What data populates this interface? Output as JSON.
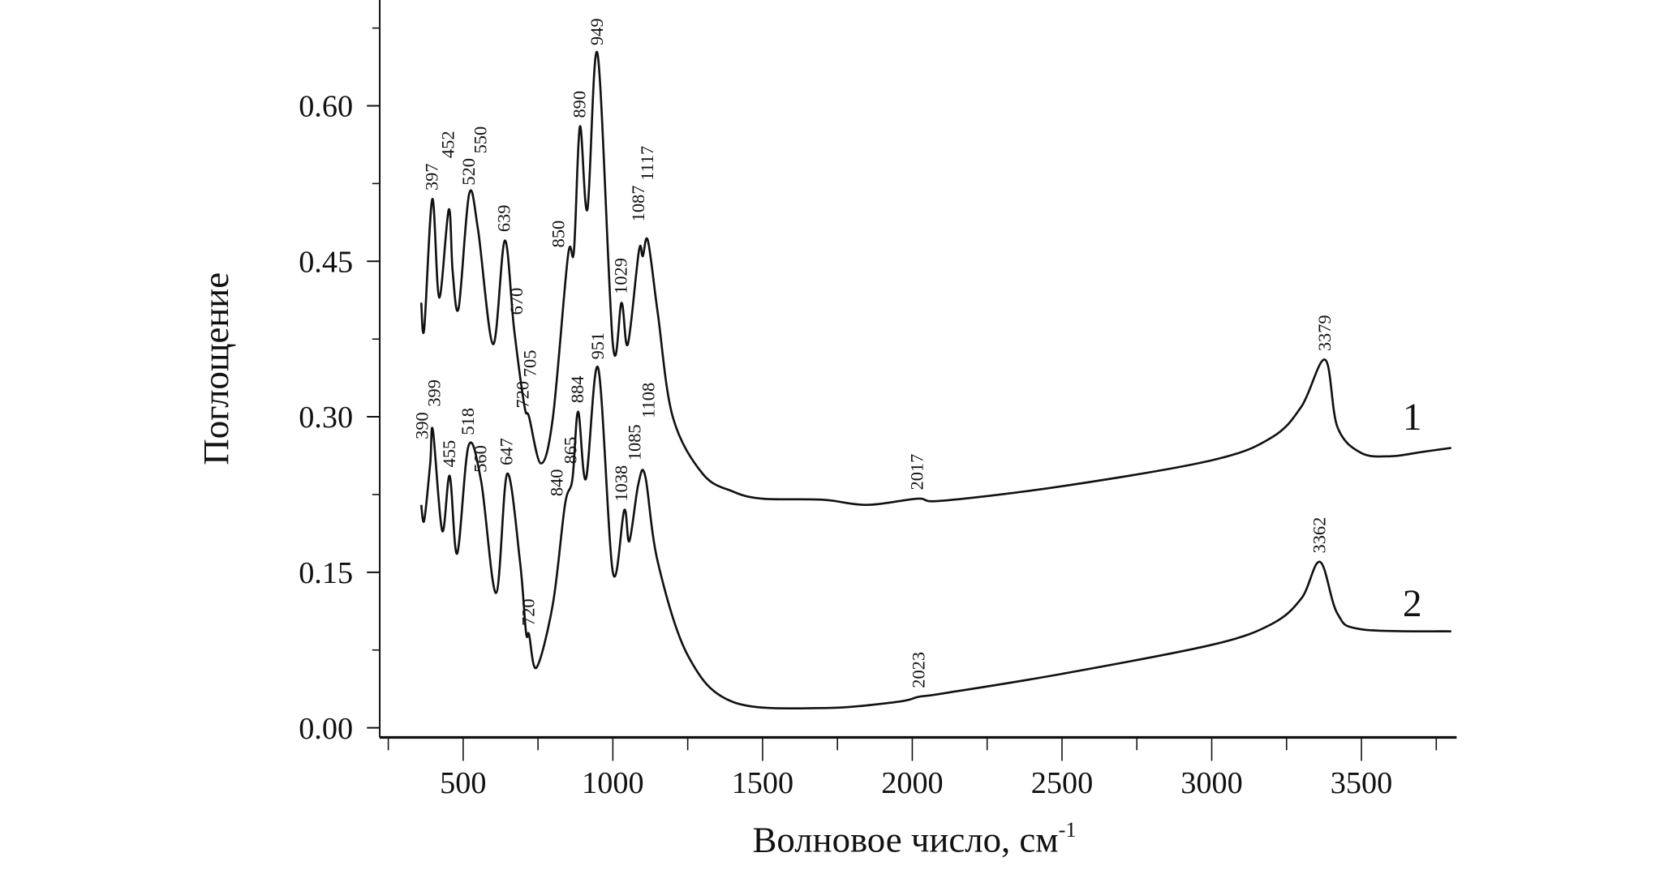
{
  "chart_data": {
    "type": "line",
    "title": "",
    "xlabel": "Волновое число, см",
    "xlabel_sup": "-1",
    "ylabel": "Поглощение",
    "xlim": [
      221,
      3811
    ],
    "ylim": [
      0,
      0.68
    ],
    "grid": false,
    "x_ticks": [
      500,
      1000,
      1500,
      2000,
      2500,
      3000,
      3500
    ],
    "x_tick_labels": [
      "500",
      "1000",
      "1500",
      "2000",
      "2500",
      "3000",
      "3500"
    ],
    "x_minor_ticks": [
      250,
      750,
      1250,
      1750,
      2250,
      2750,
      3250,
      3750
    ],
    "y_ticks": [
      0,
      0.15,
      0.3,
      0.45,
      0.6
    ],
    "y_tick_labels": [
      "0.00",
      "0.15",
      "0.30",
      "0.45",
      "0.60"
    ],
    "y_minor_ticks": [
      0.075,
      0.225,
      0.375,
      0.525,
      0.675
    ],
    "series": [
      {
        "name": "1",
        "label_pos": [
          3670,
          0.3
        ],
        "x": [
          360,
          370,
          397,
          420,
          452,
          465,
          485,
          520,
          550,
          600,
          639,
          670,
          705,
          720,
          760,
          800,
          850,
          870,
          890,
          915,
          949,
          1000,
          1029,
          1050,
          1087,
          1100,
          1117,
          1150,
          1200,
          1300,
          1400,
          1500,
          1700,
          1850,
          2017,
          2100,
          2500,
          3000,
          3200,
          3300,
          3379,
          3420,
          3500,
          3600,
          3700,
          3800
        ],
        "y": [
          0.41,
          0.385,
          0.51,
          0.415,
          0.5,
          0.44,
          0.405,
          0.515,
          0.48,
          0.37,
          0.47,
          0.385,
          0.31,
          0.3,
          0.255,
          0.3,
          0.455,
          0.46,
          0.58,
          0.5,
          0.65,
          0.37,
          0.41,
          0.37,
          0.46,
          0.455,
          0.47,
          0.4,
          0.3,
          0.245,
          0.228,
          0.221,
          0.22,
          0.215,
          0.221,
          0.219,
          0.233,
          0.258,
          0.28,
          0.31,
          0.355,
          0.29,
          0.265,
          0.262,
          0.266,
          0.27
        ],
        "annotations": [
          {
            "text": "397",
            "x": 397,
            "y": 0.51
          },
          {
            "text": "452",
            "x": 452,
            "y": 0.5
          },
          {
            "text": "520",
            "x": 520,
            "y": 0.515
          },
          {
            "text": "550",
            "x": 560,
            "y": 0.49
          },
          {
            "text": "639",
            "x": 639,
            "y": 0.47
          },
          {
            "text": "670",
            "x": 680,
            "y": 0.39
          },
          {
            "text": "705",
            "x": 725,
            "y": 0.33
          },
          {
            "text": "720",
            "x": 700,
            "y": 0.3
          },
          {
            "text": "850",
            "x": 820,
            "y": 0.455
          },
          {
            "text": "890",
            "x": 890,
            "y": 0.58
          },
          {
            "text": "949",
            "x": 949,
            "y": 0.65
          },
          {
            "text": "1029",
            "x": 1029,
            "y": 0.41
          },
          {
            "text": "1087",
            "x": 1087,
            "y": 0.48
          },
          {
            "text": "1117",
            "x": 1117,
            "y": 0.47
          },
          {
            "text": "2017",
            "x": 2017,
            "y": 0.221
          },
          {
            "text": "3379",
            "x": 3379,
            "y": 0.355
          }
        ]
      },
      {
        "name": "2",
        "label_pos": [
          3670,
          0.12
        ],
        "x": [
          360,
          370,
          390,
          399,
          430,
          455,
          480,
          518,
          560,
          610,
          647,
          690,
          710,
          720,
          745,
          800,
          840,
          865,
          884,
          910,
          951,
          1000,
          1038,
          1055,
          1085,
          1108,
          1150,
          1250,
          1400,
          1700,
          1950,
          2023,
          2100,
          2500,
          3000,
          3200,
          3300,
          3362,
          3420,
          3500,
          3800
        ],
        "y": [
          0.215,
          0.2,
          0.255,
          0.287,
          0.19,
          0.243,
          0.168,
          0.272,
          0.238,
          0.13,
          0.245,
          0.16,
          0.092,
          0.09,
          0.058,
          0.12,
          0.215,
          0.24,
          0.305,
          0.24,
          0.347,
          0.15,
          0.21,
          0.18,
          0.235,
          0.243,
          0.16,
          0.07,
          0.025,
          0.019,
          0.025,
          0.03,
          0.033,
          0.052,
          0.08,
          0.1,
          0.125,
          0.16,
          0.11,
          0.095,
          0.093
        ],
        "annotations": [
          {
            "text": "390",
            "x": 365,
            "y": 0.27
          },
          {
            "text": "399",
            "x": 405,
            "y": 0.287
          },
          {
            "text": "455",
            "x": 455,
            "y": 0.243
          },
          {
            "text": "518",
            "x": 518,
            "y": 0.272
          },
          {
            "text": "560",
            "x": 560,
            "y": 0.238
          },
          {
            "text": "647",
            "x": 647,
            "y": 0.245
          },
          {
            "text": "720",
            "x": 720,
            "y": 0.09
          },
          {
            "text": "840",
            "x": 815,
            "y": 0.215
          },
          {
            "text": "865",
            "x": 860,
            "y": 0.24
          },
          {
            "text": "884",
            "x": 884,
            "y": 0.305
          },
          {
            "text": "951",
            "x": 951,
            "y": 0.347
          },
          {
            "text": "1038",
            "x": 1030,
            "y": 0.21
          },
          {
            "text": "1085",
            "x": 1075,
            "y": 0.235
          },
          {
            "text": "1108",
            "x": 1120,
            "y": 0.243
          },
          {
            "text": "2023",
            "x": 2023,
            "y": 0.03
          },
          {
            "text": "3362",
            "x": 3362,
            "y": 0.16
          }
        ]
      }
    ]
  }
}
